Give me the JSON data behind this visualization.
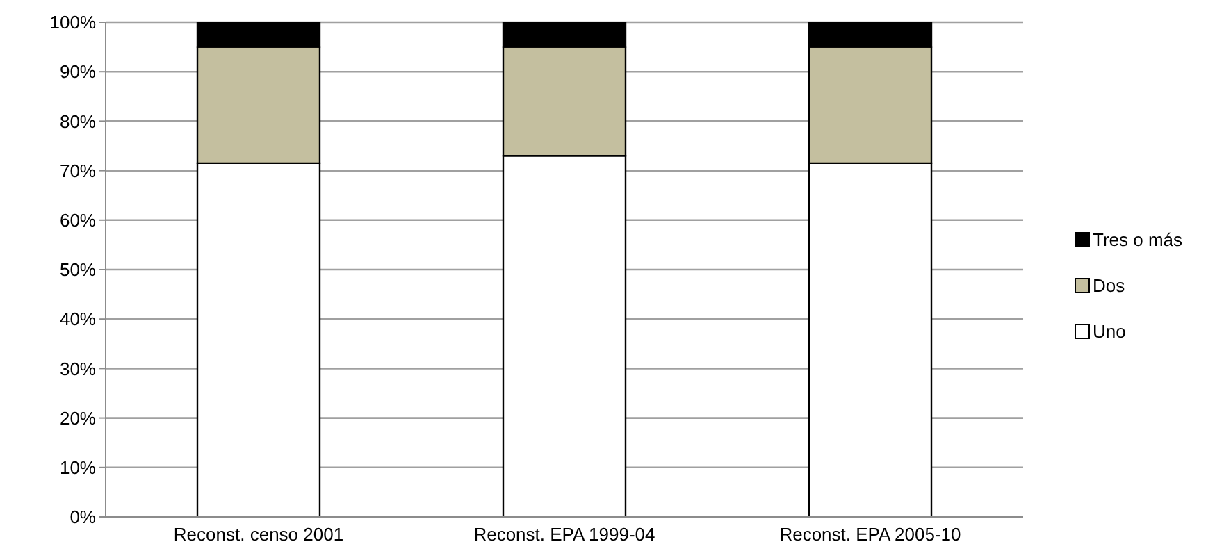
{
  "chart_data": {
    "type": "bar",
    "stacked": true,
    "categories": [
      "Reconst. censo 2001",
      "Reconst. EPA 1999-04",
      "Reconst. EPA 2005-10"
    ],
    "series": [
      {
        "name": "Uno",
        "color": "#ffffff",
        "values": [
          71.5,
          73,
          71.5
        ]
      },
      {
        "name": "Dos",
        "color": "#c4bf9f",
        "values": [
          23.5,
          22,
          23.5
        ]
      },
      {
        "name": "Tres o más",
        "color": "#000000",
        "values": [
          5,
          5,
          5
        ]
      }
    ],
    "ylim": [
      0,
      100
    ],
    "yticks": [
      {
        "value": 0,
        "label": "0%"
      },
      {
        "value": 10,
        "label": "10%"
      },
      {
        "value": 20,
        "label": "20%"
      },
      {
        "value": 30,
        "label": "30%"
      },
      {
        "value": 40,
        "label": "40%"
      },
      {
        "value": 50,
        "label": "50%"
      },
      {
        "value": 60,
        "label": "60%"
      },
      {
        "value": 70,
        "label": "70%"
      },
      {
        "value": 80,
        "label": "80%"
      },
      {
        "value": 90,
        "label": "90%"
      },
      {
        "value": 100,
        "label": "100%"
      }
    ],
    "grid": "y",
    "legend": "right"
  }
}
